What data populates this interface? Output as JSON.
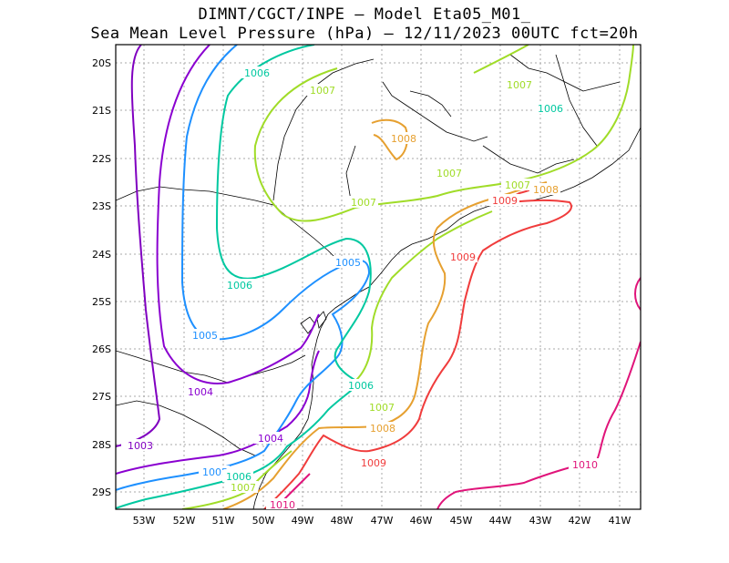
{
  "title": {
    "line1": "DIMNT/CGCT/INPE –  Model Eta05_M01_",
    "line2": "Sea Mean Level Pressure (hPa) – 12/11/2023 00UTC fct=20h"
  },
  "axes": {
    "lat_labels": [
      "20S",
      "21S",
      "22S",
      "23S",
      "24S",
      "25S",
      "26S",
      "27S",
      "28S",
      "29S"
    ],
    "lon_labels": [
      "53W",
      "52W",
      "51W",
      "50W",
      "49W",
      "48W",
      "47W",
      "46W",
      "45W",
      "44W",
      "43W",
      "42W",
      "41W"
    ]
  },
  "contours": [
    {
      "value": "1003",
      "color": "#8000c0"
    },
    {
      "value": "1004",
      "color": "#8a00d0"
    },
    {
      "value": "1005",
      "color": "#1e90ff"
    },
    {
      "value": "1006",
      "color": "#00c8a0"
    },
    {
      "value": "1007",
      "color": "#a0dc28"
    },
    {
      "value": "1008",
      "color": "#e6a030"
    },
    {
      "value": "1009",
      "color": "#f03c3c"
    },
    {
      "value": "1010",
      "color": "#e0147a"
    }
  ]
}
